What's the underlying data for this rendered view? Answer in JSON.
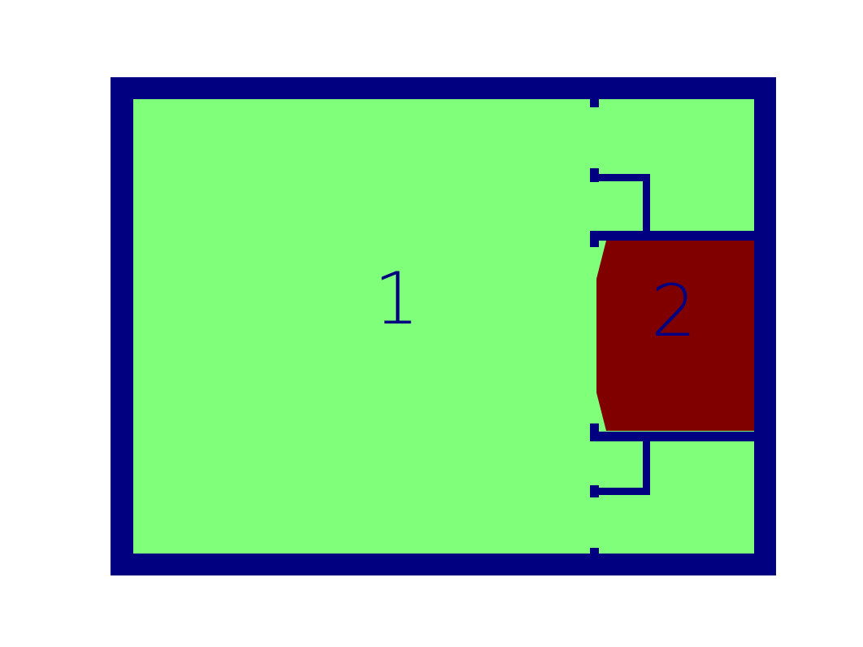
{
  "colors": {
    "background": "#ffffff",
    "wall": "#000080",
    "room_1_fill": "#80ff7a",
    "room_2_fill": "#800000",
    "label": "#000080"
  },
  "rooms": [
    {
      "label": "1"
    },
    {
      "label": "2"
    }
  ]
}
